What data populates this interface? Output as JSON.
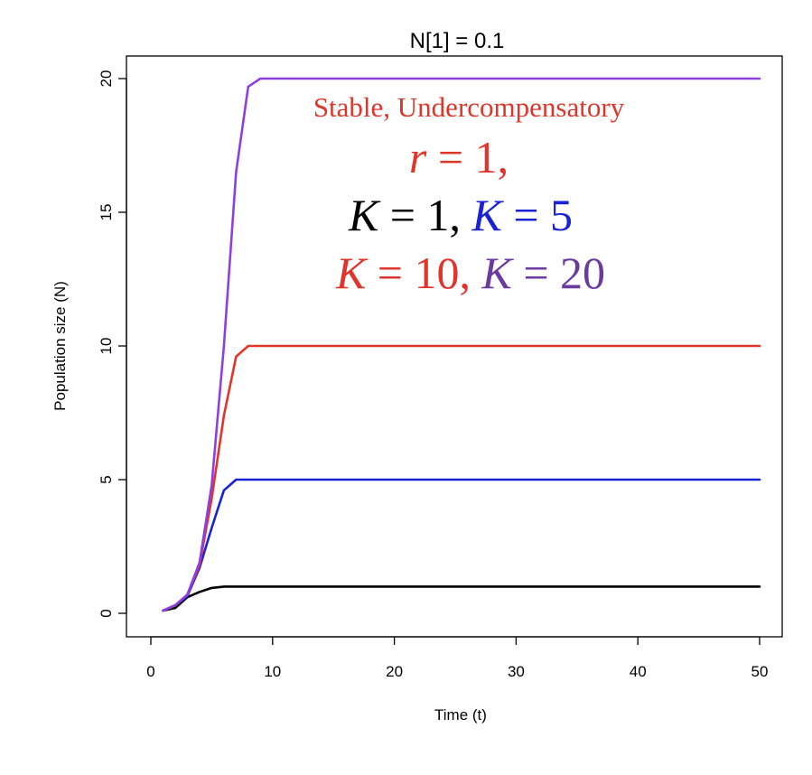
{
  "chart_data": {
    "type": "line",
    "title": "N[1] = 0.1",
    "xlabel": "Time (t)",
    "ylabel": "Population size (N)",
    "xlim": [
      0,
      50
    ],
    "ylim": [
      0,
      20
    ],
    "xticks": [
      "0",
      "10",
      "20",
      "30",
      "40",
      "50"
    ],
    "yticks": [
      "0",
      "5",
      "10",
      "15",
      "20"
    ],
    "grid": false,
    "legend": "none",
    "series": [
      {
        "color": "#000000",
        "x": [
          1,
          2,
          3,
          4,
          5,
          6,
          7,
          8,
          9,
          10,
          20,
          30,
          40,
          50
        ],
        "y": [
          0.1,
          0.2,
          0.6,
          0.8,
          0.95,
          1,
          1,
          1,
          1,
          1,
          1,
          1,
          1,
          1
        ]
      },
      {
        "color": "#1a22d6",
        "x": [
          1,
          2,
          3,
          4,
          5,
          6,
          7,
          8,
          9,
          10,
          20,
          30,
          40,
          50
        ],
        "y": [
          0.1,
          0.3,
          0.65,
          1.7,
          3.2,
          4.6,
          5.0,
          5.0,
          5.0,
          5.0,
          5.0,
          5.0,
          5.0,
          5.0
        ]
      },
      {
        "color": "#e0352b",
        "x": [
          1,
          2,
          3,
          4,
          5,
          6,
          7,
          8,
          9,
          10,
          20,
          30,
          40,
          50
        ],
        "y": [
          0.1,
          0.3,
          0.7,
          1.8,
          4.3,
          7.4,
          9.6,
          10,
          10,
          10,
          10,
          10,
          10,
          10
        ]
      },
      {
        "color": "#8e3fe0",
        "x": [
          1,
          2,
          3,
          4,
          5,
          6,
          7,
          8,
          9,
          10,
          20,
          30,
          40,
          50
        ],
        "y": [
          0.1,
          0.3,
          0.7,
          1.9,
          4.8,
          10.0,
          16.5,
          19.7,
          20,
          20,
          20,
          20,
          20,
          20
        ]
      }
    ],
    "annotations": {
      "line1": {
        "text": "Stable, Undercompensatory",
        "color": "#e0352b"
      },
      "line2": [
        {
          "text": "r",
          "italic": true,
          "color": "#e0352b"
        },
        {
          "text": " = 1,",
          "italic": false,
          "color": "#e0352b"
        }
      ],
      "line3": [
        {
          "text": "K",
          "italic": true,
          "color": "#000000"
        },
        {
          "text": " = 1, ",
          "italic": false,
          "color": "#000000"
        },
        {
          "text": "K",
          "italic": true,
          "color": "#1a22d6"
        },
        {
          "text": " = 5",
          "italic": false,
          "color": "#1a22d6"
        }
      ],
      "line4": [
        {
          "text": "K",
          "italic": true,
          "color": "#e0352b"
        },
        {
          "text": " = 10, ",
          "italic": false,
          "color": "#e0352b"
        },
        {
          "text": "K",
          "italic": true,
          "color": "#6b3aa0"
        },
        {
          "text": " = 20",
          "italic": false,
          "color": "#6b3aa0"
        }
      ]
    }
  }
}
